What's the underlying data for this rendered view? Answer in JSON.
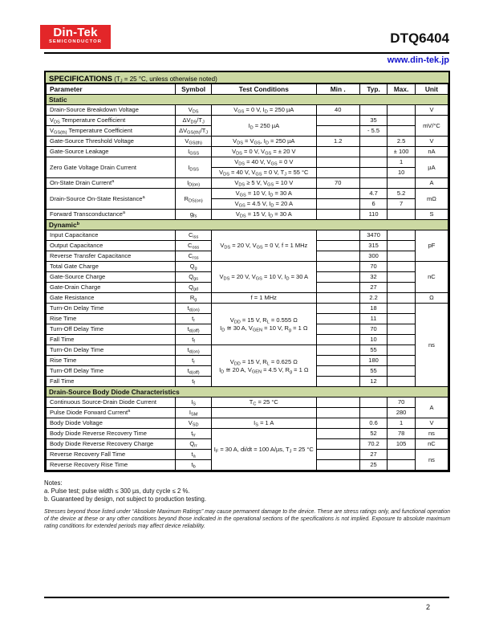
{
  "header": {
    "logo": {
      "line1": "Din-Tek",
      "line2": "SEMICONDUCTOR"
    },
    "part_number": "DTQ6404",
    "website": "www.din-tek.jp"
  },
  "spec": {
    "title_bold": "SPECIFICATIONS",
    "title_rest": " (T~J~ = 25 °C, unless otherwise noted)"
  },
  "table": {
    "columns": [
      "Parameter",
      "Symbol",
      "Test Conditions",
      "Min .",
      "Typ.",
      "Max.",
      "Unit"
    ],
    "sections": [
      {
        "label": "Static",
        "rows": [
          [
            "Drain-Source Breakdown Voltage",
            "V~DS~",
            "V~GS~ = 0 V, I~D~ = 250 µA",
            "40",
            "",
            "",
            "V"
          ],
          [
            "V~DS~ Temperature Coefficient",
            "ΔV~DS~/T~J~",
            "I~D~ = 250 µA",
            "",
            "35",
            "",
            "mV/°C"
          ],
          [
            "V~GS(th)~ Temperature Coefficient",
            "ΔV~GS(th)~/T~J~",
            "@",
            "",
            "- 5.5",
            "",
            "@"
          ],
          [
            "Gate-Source Threshold Voltage",
            "V~GS(th)~",
            "V~DS~ = V~GS~, I~D~ = 250 µA",
            "1.2",
            "",
            "2.5",
            "V"
          ],
          [
            "Gate-Source Leakage",
            "I~GSS~",
            "V~DS~ = 0 V, V~GS~ = ± 20 V",
            "",
            "",
            "± 100",
            "nA"
          ],
          [
            "Zero Gate Voltage Drain Current",
            "I~DSS~",
            "V~DS~ = 40 V, V~GS~ = 0 V",
            "",
            "",
            "1",
            "µA"
          ],
          [
            "@",
            "@",
            "V~DS~ = 40 V, V~GS~ = 0 V, T~J~ = 55 °C",
            "",
            "",
            "10",
            "@"
          ],
          [
            "On-State Drain Current^a^",
            "I~D(on)~",
            "V~DS~ ≥ 5 V, V~GS~ = 10 V",
            "70",
            "",
            "",
            "A"
          ],
          [
            "Drain-Source On-State Resistance^a^",
            "R~DS(on)~",
            "V~GS~ = 10 V, I~D~ = 30 A",
            "",
            "4.7",
            "5.2",
            "mΩ"
          ],
          [
            "@",
            "@",
            "V~GS~ = 4.5 V, I~D~ = 20 A",
            "",
            "6",
            "7",
            "@"
          ],
          [
            "Forward Transconductance^a^",
            "g~fs~",
            "V~DS~ = 15 V, I~D~ = 30 A",
            "",
            "110",
            "",
            "S"
          ]
        ]
      },
      {
        "label": "Dynamic^b^",
        "rows": [
          [
            "Input Capacitance",
            "C~iss~",
            "V~DS~ = 20 V, V~GS~ = 0 V, f = 1 MHz",
            "",
            "3470",
            "",
            "pF"
          ],
          [
            "Output Capacitance",
            "C~oss~",
            "@",
            "",
            "315",
            "",
            "@"
          ],
          [
            "Reverse Transfer Capacitance",
            "C~rss~",
            "@",
            "",
            "300",
            "",
            "@"
          ],
          [
            "Total Gate Charge",
            "Q~g~",
            "V~DS~ = 20 V, V~GS~ = 10 V, I~D~ = 30 A",
            "",
            "70",
            "",
            "nC"
          ],
          [
            "Gate-Source Charge",
            "Q~gs~",
            "@",
            "",
            "32",
            "",
            "@"
          ],
          [
            "Gate-Drain Charge",
            "Q~gd~",
            "@",
            "",
            "27",
            "",
            "@"
          ],
          [
            "Gate Resistance",
            "R~g~",
            "f = 1 MHz",
            "",
            "2.2",
            "",
            "Ω"
          ],
          [
            "Turn-On Delay Time",
            "t~d(on)~",
            "V~DD~ = 15 V, R~L~ = 0.555 Ω|I~D~ ≅ 30 A, V~GEN~ = 10 V, R~g~ = 1 Ω",
            "",
            "18",
            "",
            "ns"
          ],
          [
            "Rise Time",
            "t~r~",
            "@",
            "",
            "11",
            "",
            "@"
          ],
          [
            "Turn-Off Delay Time",
            "t~d(off)~",
            "@",
            "",
            "70",
            "",
            "@"
          ],
          [
            "Fall Time",
            "t~f~",
            "@",
            "",
            "10",
            "",
            "@"
          ],
          [
            "Turn-On Delay Time",
            "t~d(on)~",
            "V~DD~ = 15 V, R~L~ = 0.625 Ω|I~D~ ≅ 20 A, V~GEN~ = 4.5 V, R~g~ = 1 Ω",
            "",
            "55",
            "",
            "@"
          ],
          [
            "Rise Time",
            "t~r~",
            "@",
            "",
            "180",
            "",
            "@"
          ],
          [
            "Turn-Off Delay Time",
            "t~d(off)~",
            "@",
            "",
            "55",
            "",
            "@"
          ],
          [
            "Fall Time",
            "t~f~",
            "@",
            "",
            "12",
            "",
            "@"
          ]
        ]
      },
      {
        "label": "Drain-Source Body Diode Characteristics",
        "rows": [
          [
            "Continuous Source-Drain Diode Current",
            "I~S~",
            "T~C~ = 25 °C",
            "",
            "",
            "70",
            "A"
          ],
          [
            "Pulse Diode Forward Current^a^",
            "I~SM~",
            "",
            "",
            "",
            "280",
            "@"
          ],
          [
            "Body Diode Voltage",
            "V~SD~",
            "I~S~ = 1 A",
            "",
            "0.6",
            "1",
            "V"
          ],
          [
            "Body Diode Reverse Recovery Time",
            "t~rr~",
            "I~F~ = 30 A, di/dt = 100 A/µs, T~J~ = 25 °C",
            "",
            "52",
            "78",
            "ns"
          ],
          [
            "Body Diode Reverse Recovery Charge",
            "Q~rr~",
            "@",
            "",
            "70.2",
            "105",
            "nC"
          ],
          [
            "Reverse Recovery Fall Time",
            "t~a~",
            "@",
            "",
            "27",
            "",
            "ns"
          ],
          [
            "Reverse Recovery Rise Time",
            "t~b~",
            "@",
            "",
            "25",
            "",
            "@"
          ]
        ]
      }
    ]
  },
  "notes": {
    "heading": "Notes:",
    "items": [
      "a. Pulse test; pulse width ≤ 300 µs, duty cycle ≤ 2 %.",
      "b. Guaranteed by design, not subject to production testing."
    ]
  },
  "disclaimer": "Stresses beyond those listed under “Absolute Maximum Ratings” may cause permanent damage to the device. These are stress ratings only, and functional operation of the device at these or any other conditions beyond those indicated in the operational sections of the specifications is not implied. Exposure to absolute maximum rating conditions for extended periods may affect device reliability.",
  "footer": {
    "page_number": "2"
  },
  "colors": {
    "section_green": "#ccd9a3",
    "brand_red": "#e32629",
    "link_blue": "#1414cc"
  }
}
